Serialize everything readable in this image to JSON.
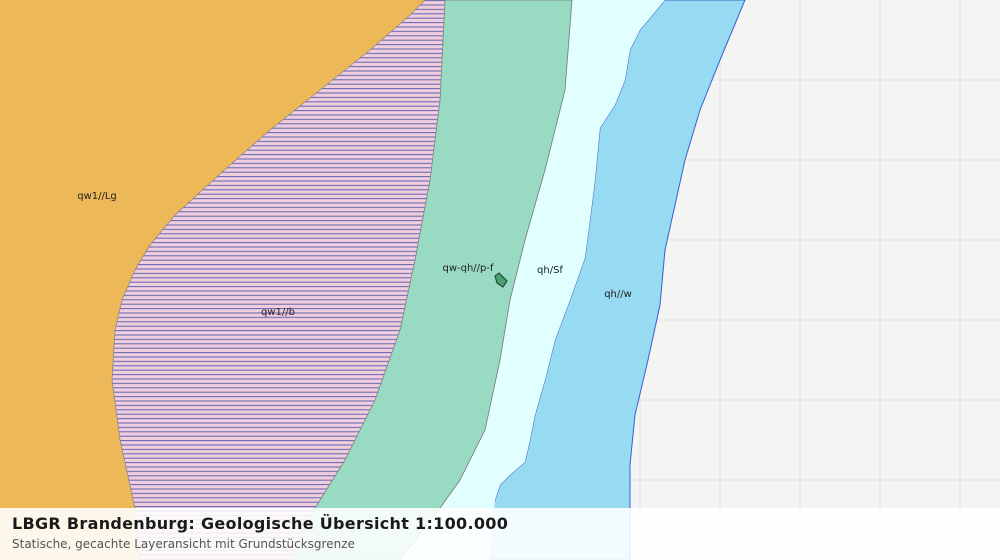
{
  "map": {
    "labels": [
      "qw1//Lg",
      "qw1//b",
      "qw-qh//p-f",
      "qh/Sf",
      "qh//w"
    ],
    "footer": {
      "title": "LBGR Brandenburg: Geologische Übersicht 1:100.000",
      "subtitle": "Statische, gecachte Layeransicht mit Grundstücksgrenze"
    }
  }
}
